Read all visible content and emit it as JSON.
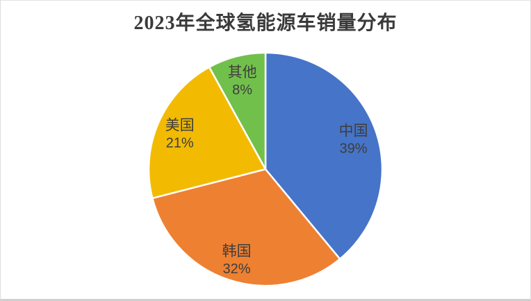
{
  "chart_data": {
    "type": "pie",
    "title": "2023年全球氢能源车销量分布",
    "categories": [
      "中国",
      "韩国",
      "美国",
      "其他"
    ],
    "values": [
      39,
      32,
      21,
      8
    ],
    "percent_labels": [
      "39%",
      "32%",
      "21%",
      "8%"
    ],
    "slice_ids": [
      "china",
      "korea",
      "usa",
      "others"
    ],
    "colors": [
      "#4674C8",
      "#EE8032",
      "#F2BB02",
      "#72C04C"
    ],
    "start_angle_deg": 0,
    "direction": "clockwise",
    "labels_position": "inside",
    "label_text_color": "#3d3d3d",
    "slice_border_color": "#ffffff",
    "legend": "none",
    "background_color": "#ffffff"
  }
}
